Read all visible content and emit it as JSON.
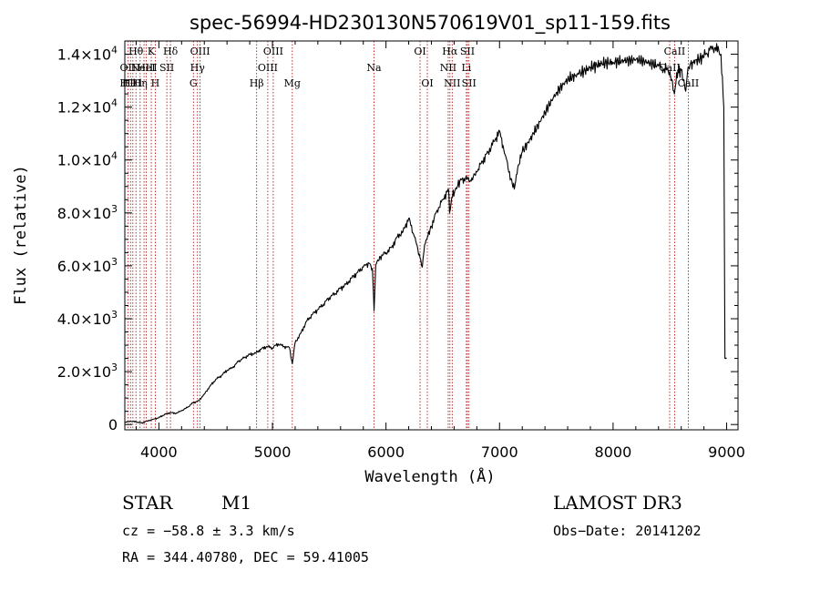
{
  "chart_data": {
    "type": "line",
    "title": "spec-56994-HD230130N570619V01_sp11-159.fits",
    "xlabel": "Wavelength (Å)",
    "ylabel": "Flux (relative)",
    "xlim": [
      3700,
      9100
    ],
    "ylim": [
      -200,
      14500
    ],
    "xticks": [
      4000,
      5000,
      6000,
      7000,
      8000,
      9000
    ],
    "xtick_labels": [
      "4000",
      "5000",
      "6000",
      "7000",
      "8000",
      "9000"
    ],
    "yticks": [
      0,
      2000,
      4000,
      6000,
      8000,
      10000,
      12000,
      14000
    ],
    "ytick_labels": [
      {
        "m": "0",
        "e": ""
      },
      {
        "m": "2.0×10",
        "e": "3"
      },
      {
        "m": "4.0×10",
        "e": "3"
      },
      {
        "m": "6.0×10",
        "e": "3"
      },
      {
        "m": "8.0×10",
        "e": "3"
      },
      {
        "m": "1.0×10",
        "e": "4"
      },
      {
        "m": "1.2×10",
        "e": "4"
      },
      {
        "m": "1.4×10",
        "e": "4"
      }
    ],
    "line_color": "#000000",
    "marker_color": "#aa0000",
    "series": [
      {
        "name": "flux",
        "points": [
          [
            3700,
            80
          ],
          [
            3750,
            120
          ],
          [
            3800,
            100
          ],
          [
            3850,
            60
          ],
          [
            3900,
            140
          ],
          [
            3950,
            200
          ],
          [
            4000,
            260
          ],
          [
            4050,
            380
          ],
          [
            4100,
            450
          ],
          [
            4150,
            420
          ],
          [
            4200,
            520
          ],
          [
            4250,
            640
          ],
          [
            4300,
            820
          ],
          [
            4350,
            900
          ],
          [
            4400,
            1150
          ],
          [
            4450,
            1450
          ],
          [
            4500,
            1700
          ],
          [
            4550,
            1850
          ],
          [
            4600,
            2050
          ],
          [
            4650,
            2150
          ],
          [
            4700,
            2380
          ],
          [
            4750,
            2520
          ],
          [
            4800,
            2650
          ],
          [
            4850,
            2700
          ],
          [
            4900,
            2850
          ],
          [
            4950,
            2950
          ],
          [
            5000,
            2900
          ],
          [
            5050,
            3050
          ],
          [
            5100,
            2950
          ],
          [
            5150,
            2900
          ],
          [
            5175,
            2300
          ],
          [
            5200,
            3100
          ],
          [
            5250,
            3450
          ],
          [
            5300,
            3900
          ],
          [
            5350,
            4150
          ],
          [
            5400,
            4350
          ],
          [
            5450,
            4550
          ],
          [
            5500,
            4800
          ],
          [
            5550,
            4950
          ],
          [
            5600,
            5150
          ],
          [
            5650,
            5300
          ],
          [
            5700,
            5550
          ],
          [
            5750,
            5750
          ],
          [
            5800,
            5950
          ],
          [
            5850,
            6100
          ],
          [
            5880,
            5900
          ],
          [
            5895,
            4300
          ],
          [
            5910,
            6050
          ],
          [
            5950,
            6350
          ],
          [
            6000,
            6500
          ],
          [
            6050,
            6700
          ],
          [
            6100,
            7100
          ],
          [
            6150,
            7300
          ],
          [
            6200,
            7800
          ],
          [
            6250,
            7100
          ],
          [
            6300,
            6300
          ],
          [
            6320,
            5950
          ],
          [
            6340,
            6800
          ],
          [
            6400,
            7500
          ],
          [
            6450,
            8100
          ],
          [
            6500,
            8500
          ],
          [
            6550,
            8900
          ],
          [
            6560,
            8000
          ],
          [
            6580,
            8600
          ],
          [
            6650,
            9200
          ],
          [
            6700,
            9300
          ],
          [
            6750,
            9200
          ],
          [
            6800,
            9550
          ],
          [
            6850,
            9950
          ],
          [
            6900,
            10300
          ],
          [
            6950,
            10700
          ],
          [
            7000,
            11100
          ],
          [
            7050,
            10200
          ],
          [
            7100,
            9300
          ],
          [
            7130,
            8900
          ],
          [
            7160,
            9700
          ],
          [
            7200,
            10300
          ],
          [
            7300,
            11000
          ],
          [
            7400,
            11800
          ],
          [
            7500,
            12550
          ],
          [
            7600,
            13050
          ],
          [
            7700,
            13250
          ],
          [
            7800,
            13500
          ],
          [
            7900,
            13650
          ],
          [
            8000,
            13700
          ],
          [
            8100,
            13750
          ],
          [
            8200,
            13800
          ],
          [
            8300,
            13700
          ],
          [
            8400,
            13550
          ],
          [
            8450,
            13450
          ],
          [
            8500,
            13350
          ],
          [
            8540,
            12500
          ],
          [
            8560,
            13300
          ],
          [
            8600,
            13400
          ],
          [
            8640,
            12600
          ],
          [
            8660,
            13500
          ],
          [
            8700,
            13700
          ],
          [
            8800,
            13900
          ],
          [
            8850,
            14150
          ],
          [
            8900,
            14250
          ],
          [
            8950,
            14000
          ],
          [
            8975,
            12000
          ],
          [
            8985,
            2500
          ],
          [
            9000,
            2500
          ]
        ]
      }
    ],
    "lines": [
      {
        "wl": 3727,
        "label": "OII",
        "row": 1
      },
      {
        "wl": 3750,
        "label": "H10",
        "row": 2
      },
      {
        "wl": 3771,
        "label": "H11",
        "row": 2
      },
      {
        "wl": 3798,
        "label": "Hθ",
        "row": 0
      },
      {
        "wl": 3835,
        "label": "Hη",
        "row": 2
      },
      {
        "wl": 3869,
        "label": "NeIII",
        "row": 1
      },
      {
        "wl": 3889,
        "label": "HeI",
        "row": 1
      },
      {
        "wl": 3933,
        "label": "K",
        "row": 0
      },
      {
        "wl": 3968,
        "label": "H",
        "row": 2
      },
      {
        "wl": 4070,
        "label": "SII",
        "row": 1
      },
      {
        "wl": 4102,
        "label": "Hδ",
        "row": 0
      },
      {
        "wl": 4304,
        "label": "G",
        "row": 2
      },
      {
        "wl": 4340,
        "label": "Hγ",
        "row": 1
      },
      {
        "wl": 4363,
        "label": "OIII",
        "row": 0
      },
      {
        "wl": 4861,
        "label": "Hβ",
        "row": 2
      },
      {
        "wl": 4959,
        "label": "OIII",
        "row": 1
      },
      {
        "wl": 5007,
        "label": "OIII",
        "row": 0
      },
      {
        "wl": 5175,
        "label": "Mg",
        "row": 2
      },
      {
        "wl": 5894,
        "label": "Na",
        "row": 1
      },
      {
        "wl": 6300,
        "label": "OI",
        "row": 0
      },
      {
        "wl": 6364,
        "label": "OI",
        "row": 2
      },
      {
        "wl": 6548,
        "label": "NII",
        "row": 1
      },
      {
        "wl": 6563,
        "label": "Hα",
        "row": 0
      },
      {
        "wl": 6583,
        "label": "NII",
        "row": 2
      },
      {
        "wl": 6708,
        "label": "Li",
        "row": 1
      },
      {
        "wl": 6717,
        "label": "SII",
        "row": 0
      },
      {
        "wl": 6731,
        "label": "SII",
        "row": 2
      },
      {
        "wl": 8498,
        "label": "CaII",
        "row": 1
      },
      {
        "wl": 8542,
        "label": "CaII",
        "row": 0
      },
      {
        "wl": 8662,
        "label": "CaII",
        "row": 2
      }
    ]
  },
  "info": {
    "object_class": "STAR",
    "subclass": "M1",
    "survey": "LAMOST DR3",
    "cz": "cz = −58.8 ± 3.3 km/s",
    "obs_date": "Obs−Date: 20141202",
    "coords": "RA = 344.40780, DEC =  59.41005"
  }
}
